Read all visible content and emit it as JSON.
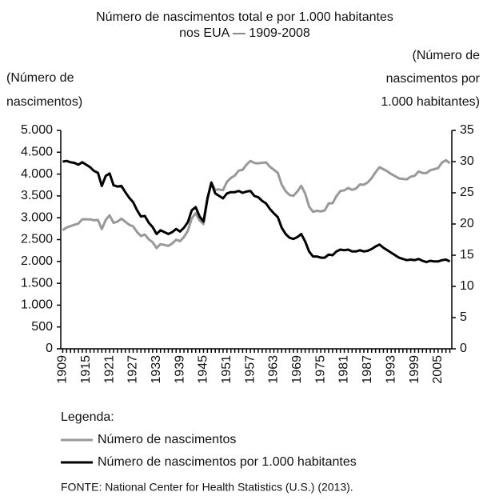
{
  "chart_data": {
    "type": "line",
    "title": [
      "Número de nascimentos total e por 1.000 habitantes",
      "nos EUA — 1909-2008"
    ],
    "ylabel": [
      "(Número de",
      "nascimentos)"
    ],
    "y2label": [
      "(Número de",
      "nascimentos por",
      "1.000 habitantes)"
    ],
    "legend_title": "Legenda:",
    "source": "FONTE: National Center for Health Statistics (U.S.) (2013).",
    "categories": [
      "1909",
      null,
      null,
      null,
      null,
      null,
      "1915",
      null,
      null,
      null,
      null,
      null,
      "1921",
      null,
      null,
      null,
      null,
      null,
      "1927",
      null,
      null,
      null,
      null,
      null,
      "1933",
      null,
      null,
      null,
      null,
      null,
      "1939",
      null,
      null,
      null,
      null,
      null,
      "1945",
      null,
      null,
      null,
      null,
      null,
      "1951",
      null,
      null,
      null,
      null,
      null,
      "1957",
      null,
      null,
      null,
      null,
      null,
      "1963",
      null,
      null,
      null,
      null,
      null,
      "1969",
      null,
      null,
      null,
      null,
      null,
      "1975",
      null,
      null,
      null,
      null,
      null,
      "1981",
      null,
      null,
      null,
      null,
      null,
      "1987",
      null,
      null,
      null,
      null,
      null,
      "1993",
      null,
      null,
      null,
      null,
      null,
      "1999",
      null,
      null,
      null,
      null,
      null,
      "2005",
      null,
      null,
      null
    ],
    "series": [
      {
        "name": "Número de nascimentos",
        "color": "#999999",
        "axis": "y",
        "values": [
          2718,
          2777,
          2809,
          2840,
          2869,
          2966,
          2965,
          2964,
          2944,
          2948,
          2740,
          2950,
          3055,
          2882,
          2910,
          2979,
          2909,
          2839,
          2802,
          2674,
          2582,
          2618,
          2506,
          2440,
          2307,
          2396,
          2377,
          2355,
          2413,
          2496,
          2466,
          2559,
          2703,
          2989,
          3104,
          2939,
          2858,
          3411,
          3817,
          3637,
          3649,
          3632,
          3823,
          3913,
          3965,
          4078,
          4097,
          4218,
          4300,
          4255,
          4245,
          4258,
          4268,
          4167,
          4098,
          4027,
          3760,
          3606,
          3521,
          3502,
          3600,
          3731,
          3556,
          3258,
          3137,
          3160,
          3144,
          3168,
          3327,
          3333,
          3494,
          3612,
          3629,
          3681,
          3639,
          3669,
          3761,
          3757,
          3809,
          3910,
          4041,
          4158,
          4111,
          4065,
          4000,
          3953,
          3900,
          3891,
          3881,
          3942,
          3959,
          4059,
          4026,
          4022,
          4090,
          4112,
          4138,
          4266,
          4316,
          4248
        ]
      },
      {
        "name": "Número de nascimentos por 1.000 habitantes",
        "color": "#000000",
        "axis": "y2",
        "values": [
          30.0,
          30.1,
          29.9,
          29.8,
          29.5,
          29.9,
          29.5,
          29.1,
          28.5,
          28.2,
          26.1,
          27.7,
          28.1,
          26.2,
          26.0,
          26.1,
          25.1,
          24.2,
          23.5,
          22.2,
          21.2,
          21.3,
          20.2,
          19.5,
          18.4,
          19.0,
          18.7,
          18.4,
          18.7,
          19.2,
          18.8,
          19.4,
          20.3,
          22.2,
          22.7,
          21.2,
          20.4,
          24.1,
          26.6,
          24.9,
          24.5,
          24.1,
          24.9,
          25.1,
          25.1,
          25.3,
          25.0,
          25.2,
          25.3,
          24.5,
          24.3,
          23.7,
          23.3,
          22.4,
          21.7,
          21.1,
          19.4,
          18.4,
          17.8,
          17.6,
          17.9,
          18.4,
          17.2,
          15.6,
          14.8,
          14.8,
          14.6,
          14.6,
          15.1,
          15.0,
          15.6,
          15.9,
          15.8,
          15.9,
          15.6,
          15.6,
          15.8,
          15.6,
          15.7,
          16.0,
          16.4,
          16.7,
          16.2,
          15.8,
          15.4,
          15.0,
          14.6,
          14.4,
          14.2,
          14.3,
          14.2,
          14.4,
          14.1,
          13.9,
          14.1,
          14.0,
          14.0,
          14.2,
          14.3,
          14.0
        ]
      }
    ],
    "ylim": [
      0,
      5000
    ],
    "yticks": [
      {
        "value": 0,
        "label": "0"
      },
      {
        "value": 500,
        "label": "500"
      },
      {
        "value": 1000,
        "label": "1.000"
      },
      {
        "value": 1500,
        "label": "1.500"
      },
      {
        "value": 2000,
        "label": "2.000"
      },
      {
        "value": 2500,
        "label": "2.500"
      },
      {
        "value": 3000,
        "label": "3.000"
      },
      {
        "value": 3500,
        "label": "3.500"
      },
      {
        "value": 4000,
        "label": "4.000"
      },
      {
        "value": 4500,
        "label": "4.500"
      },
      {
        "value": 5000,
        "label": "5.000"
      }
    ],
    "y2lim": [
      0,
      35
    ],
    "y2ticks": [
      0,
      5,
      10,
      15,
      20,
      25,
      30,
      35
    ],
    "grid": false
  }
}
